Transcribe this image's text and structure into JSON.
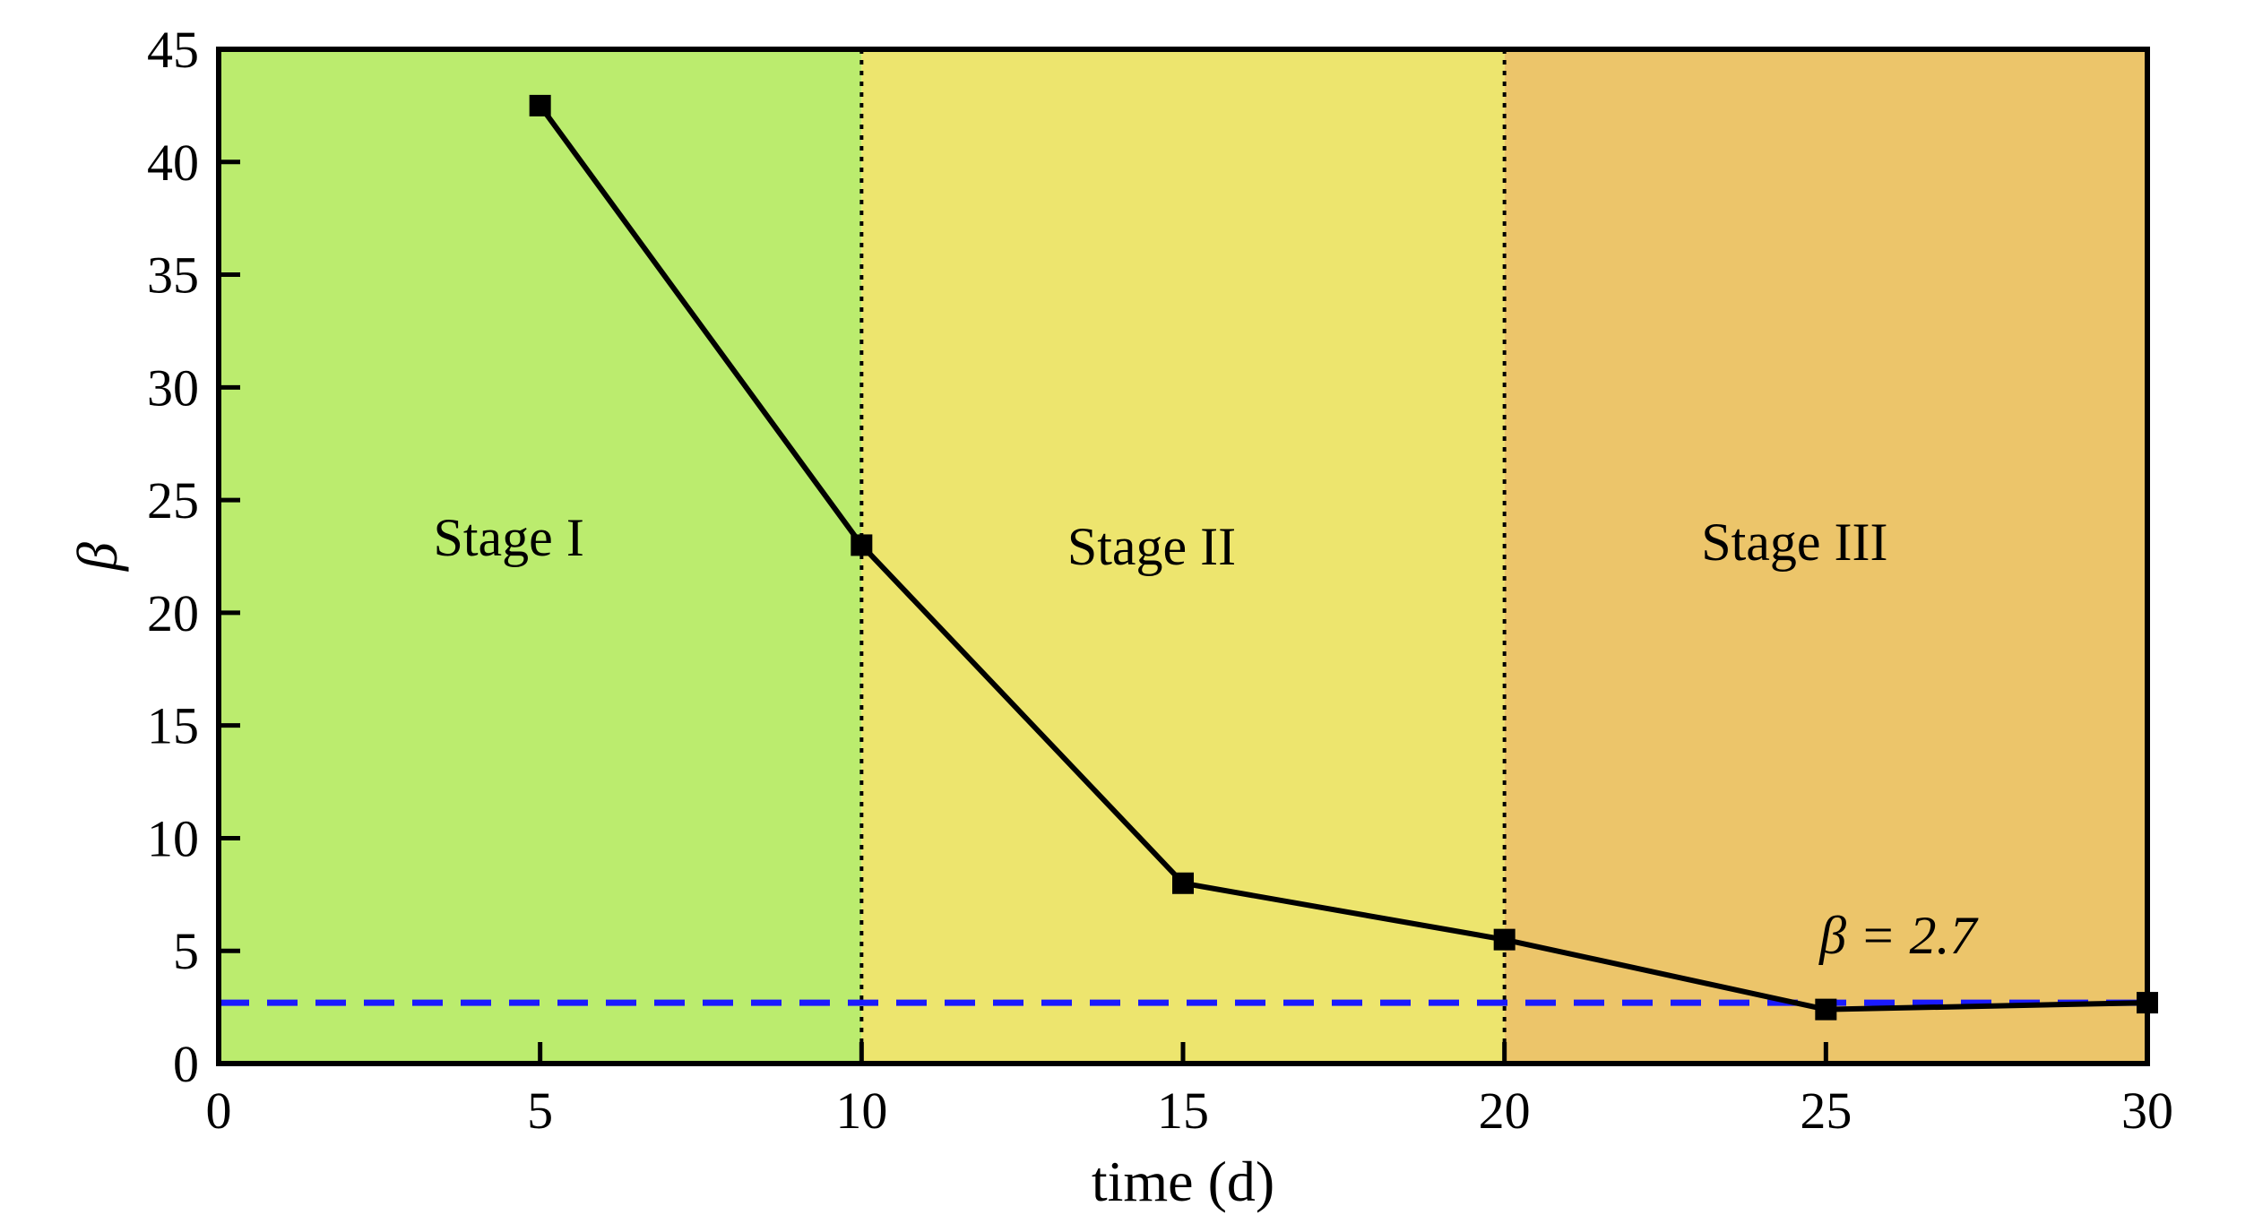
{
  "chart_data": {
    "type": "line",
    "title": "",
    "xlabel": "time (d)",
    "ylabel": "β",
    "xlim": [
      0,
      30
    ],
    "ylim": [
      0,
      45
    ],
    "xticks": [
      0,
      5,
      10,
      15,
      20,
      25,
      30
    ],
    "yticks": [
      0,
      5,
      10,
      15,
      20,
      25,
      30,
      35,
      40,
      45
    ],
    "grid": false,
    "series": [
      {
        "x": [
          5,
          10,
          15,
          20,
          25,
          30
        ],
        "y": [
          42.5,
          23.0,
          8.0,
          5.5,
          2.4,
          2.7
        ],
        "marker": "square",
        "color": "#000000"
      }
    ],
    "reference_line": {
      "y": 2.7,
      "style": "dashed",
      "color": "#1a1aff",
      "label": "β = 2.7"
    },
    "regions": [
      {
        "label": "Stage I",
        "x_start": 0,
        "x_end": 10,
        "color": "#bbec6e"
      },
      {
        "label": "Stage II",
        "x_start": 10,
        "x_end": 20,
        "color": "#ede56e"
      },
      {
        "label": "Stage III",
        "x_start": 20,
        "x_end": 30,
        "color": "#ecc56a"
      }
    ],
    "region_dividers": [
      10,
      20
    ]
  }
}
